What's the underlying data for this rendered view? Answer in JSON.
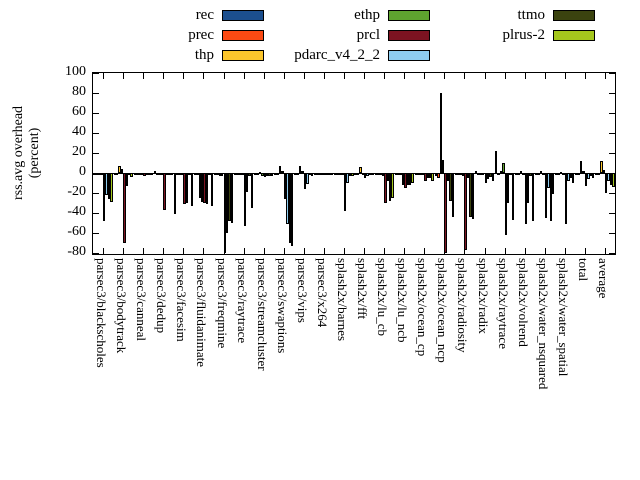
{
  "ylabel_line1": "rss.avg overhead",
  "ylabel_line2": "(percent)",
  "chart_data": {
    "type": "bar",
    "title": "",
    "xlabel": "",
    "ylabel": "rss.avg overhead (percent)",
    "ylim": [
      -80,
      100
    ],
    "ytick_step": 20,
    "yticks": [
      100,
      80,
      60,
      40,
      20,
      0,
      -20,
      -40,
      -60,
      -80
    ],
    "grid": false,
    "legend_position": "top",
    "legend_columns": [
      3,
      3,
      2
    ],
    "categories": [
      "parsec3/blackscholes",
      "parsec3/bodytrack",
      "parsec3/canneal",
      "parsec3/dedup",
      "parsec3/facesim",
      "parsec3/fluidanimate",
      "parsec3/freqmine",
      "parsec3/raytrace",
      "parsec3/streamcluster",
      "parsec3/swaptions",
      "parsec3/vips",
      "parsec3/x264",
      "splash2x/barnes",
      "splash2x/fft",
      "splash2x/lu_cb",
      "splash2x/lu_ncb",
      "splash2x/ocean_cp",
      "splash2x/ocean_ncp",
      "splash2x/radiosity",
      "splash2x/radix",
      "splash2x/raytrace",
      "splash2x/volrend",
      "splash2x/water_nsquared",
      "splash2x/water_spatial",
      "total",
      "average"
    ],
    "series": [
      {
        "name": "rec",
        "color": "#1c4f8e",
        "values": [
          -1,
          -1,
          -1,
          2,
          -41,
          -1,
          -2,
          -1,
          -1,
          -1,
          -1,
          -1,
          -1,
          -1,
          -2,
          -1,
          -2,
          -3,
          -1,
          2,
          22,
          -1,
          -1,
          -1,
          -1,
          -1
        ]
      },
      {
        "name": "prec",
        "color": "#fb4a13",
        "values": [
          -1,
          -1,
          -1,
          -1,
          -2,
          -1,
          -2,
          -1,
          -2,
          -1,
          -1,
          -1,
          -1,
          -1,
          -2,
          -1,
          -2,
          -5,
          -2,
          -1,
          -1,
          -1,
          -1,
          -2,
          -1,
          -1
        ]
      },
      {
        "name": "thp",
        "color": "#fbc52c",
        "values": [
          -1,
          7,
          -1,
          -1,
          -1,
          -25,
          -3,
          -2,
          1,
          7,
          7,
          -1,
          -2,
          6,
          -2,
          -2,
          -1,
          80,
          -2,
          -1,
          2,
          2,
          2,
          1,
          12,
          12
        ]
      },
      {
        "name": "ethp",
        "color": "#5ea32f",
        "values": [
          -1,
          4,
          -1,
          -1,
          -1,
          -29,
          -3,
          -2,
          -3,
          2,
          2,
          -1,
          -2,
          -2,
          -3,
          -12,
          -2,
          13,
          -3,
          -2,
          10,
          -2,
          -2,
          -2,
          2,
          3
        ]
      },
      {
        "name": "prcl",
        "color": "#7c1321",
        "values": [
          -48,
          -70,
          -3,
          -37,
          -31,
          -30,
          -80,
          -53,
          -4,
          -26,
          -16,
          -2,
          -38,
          -5,
          -30,
          -15,
          -8,
          -80,
          -77,
          -10,
          -62,
          -51,
          -45,
          -51,
          -13,
          -20
        ]
      },
      {
        "name": "pdarc_v4_2_2",
        "color": "#8ecdf0",
        "values": [
          -22,
          -13,
          -2,
          -2,
          -30,
          -31,
          -60,
          -19,
          -3,
          -51,
          -11,
          -1,
          -10,
          -3,
          -8,
          -12,
          -5,
          -8,
          -5,
          -6,
          -30,
          -30,
          -15,
          -8,
          -6,
          -8
        ]
      },
      {
        "name": "ttmo",
        "color": "#3b430f",
        "values": [
          -26,
          -2,
          -2,
          -2,
          -2,
          -2,
          -48,
          -3,
          -3,
          -70,
          -2,
          -1,
          -3,
          -2,
          -28,
          -12,
          -5,
          -28,
          -44,
          -4,
          -2,
          -3,
          -48,
          -5,
          -3,
          -12
        ]
      },
      {
        "name": "plrus-2",
        "color": "#a5c71d",
        "values": [
          -29,
          -4,
          -2,
          -2,
          -33,
          -33,
          -50,
          -35,
          -3,
          -73,
          -3,
          -1,
          -3,
          -2,
          -25,
          -10,
          -8,
          -44,
          -46,
          -8,
          -47,
          -48,
          -21,
          -10,
          -5,
          -14
        ]
      }
    ]
  },
  "layout_note": "black-bordered clustered bars, baseline at 0"
}
